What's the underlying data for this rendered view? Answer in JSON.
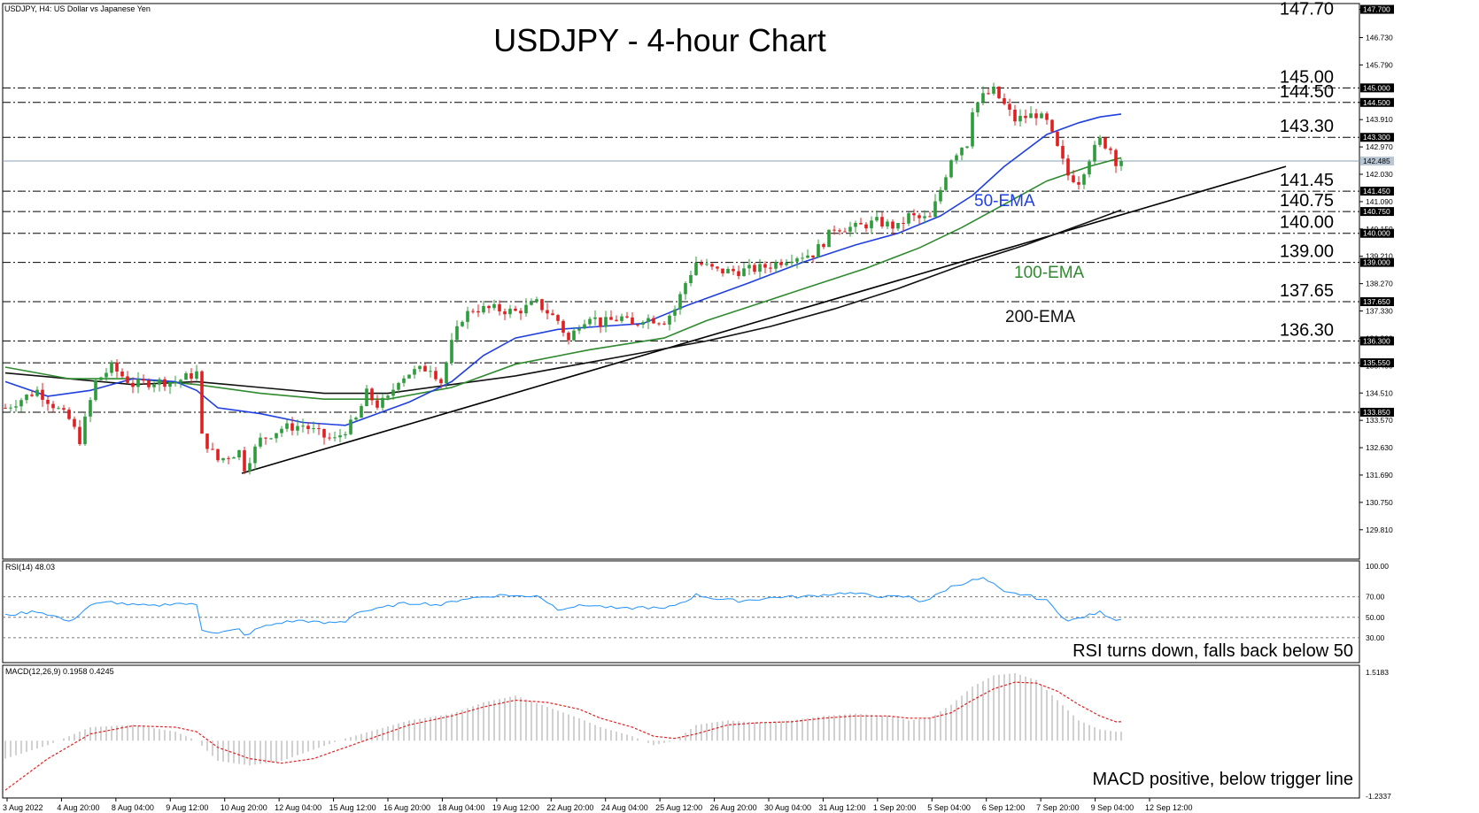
{
  "chart_data": {
    "type": "candlestick",
    "symbol_label": "USDJPY, H4: US Dollar vs Japanese Yen",
    "title": "USDJPY - 4-hour Chart",
    "ylim": [
      128.8,
      147.9
    ],
    "price_axis_ticks": [
      "147.700",
      "146.730",
      "145.790",
      "144.500",
      "143.910",
      "142.970",
      "142.030",
      "141.090",
      "140.150",
      "139.210",
      "138.270",
      "137.330",
      "136.390",
      "135.450",
      "134.510",
      "133.570",
      "132.630",
      "131.690",
      "130.750",
      "129.810"
    ],
    "levels": [
      {
        "value": 145.0,
        "label": "145.00",
        "tag": "145.000"
      },
      {
        "value": 144.5,
        "label": "144.50",
        "tag": "144.500"
      },
      {
        "value": 143.3,
        "label": "143.30",
        "tag": "143.300"
      },
      {
        "value": 141.45,
        "label": "141.45",
        "tag": "141.450"
      },
      {
        "value": 140.75,
        "label": "140.75",
        "tag": "140.750"
      },
      {
        "value": 140.0,
        "label": "140.00",
        "tag": "140.000"
      },
      {
        "value": 139.0,
        "label": "139.00",
        "tag": "139.000"
      },
      {
        "value": 137.65,
        "label": "137.65",
        "tag": "137.650"
      },
      {
        "value": 136.3,
        "label": "136.30",
        "tag": "136.300"
      },
      {
        "value": null,
        "label": "",
        "tag": "135.550"
      },
      {
        "value": null,
        "label": "",
        "tag": "133.850"
      }
    ],
    "top_label": "147.70",
    "top_tag": "147.700",
    "current_price": 142.485,
    "current_tag": "142.485",
    "x_labels": [
      "3 Aug 2022",
      "4 Aug 20:00",
      "8 Aug 04:00",
      "9 Aug 12:00",
      "10 Aug 20:00",
      "12 Aug 04:00",
      "15 Aug 12:00",
      "16 Aug 20:00",
      "18 Aug 04:00",
      "19 Aug 12:00",
      "22 Aug 20:00",
      "24 Aug 04:00",
      "25 Aug 12:00",
      "26 Aug 20:00",
      "30 Aug 04:00",
      "31 Aug 12:00",
      "1 Sep 20:00",
      "5 Sep 04:00",
      "6 Sep 12:00",
      "7 Sep 20:00",
      "9 Sep 04:00",
      "12 Sep 12:00"
    ],
    "close_path": [
      [
        0,
        134.0
      ],
      [
        6,
        134.6
      ],
      [
        12,
        133.6
      ],
      [
        14,
        132.9
      ],
      [
        17,
        134.9
      ],
      [
        20,
        135.4
      ],
      [
        24,
        134.8
      ],
      [
        28,
        134.9
      ],
      [
        32,
        134.9
      ],
      [
        36,
        135.2
      ],
      [
        37,
        133.0
      ],
      [
        40,
        132.2
      ],
      [
        44,
        132.5
      ],
      [
        44.5,
        131.8
      ],
      [
        48,
        132.9
      ],
      [
        52,
        133.3
      ],
      [
        56,
        133.4
      ],
      [
        60,
        133.0
      ],
      [
        62,
        132.9
      ],
      [
        66,
        133.6
      ],
      [
        68,
        134.5
      ],
      [
        70,
        134.1
      ],
      [
        72,
        134.3
      ],
      [
        74,
        135.0
      ],
      [
        76,
        135.2
      ],
      [
        80,
        135.4
      ],
      [
        82,
        134.9
      ],
      [
        84,
        136.2
      ],
      [
        86,
        137.1
      ],
      [
        88,
        137.4
      ],
      [
        92,
        137.4
      ],
      [
        96,
        137.3
      ],
      [
        100,
        137.6
      ],
      [
        104,
        137.0
      ],
      [
        106,
        136.3
      ],
      [
        108,
        136.9
      ],
      [
        110,
        137.2
      ],
      [
        112,
        136.9
      ],
      [
        116,
        137.1
      ],
      [
        118,
        136.8
      ],
      [
        120,
        137.1
      ],
      [
        124,
        137.0
      ],
      [
        126,
        137.4
      ],
      [
        128,
        138.3
      ],
      [
        130,
        139.0
      ],
      [
        134,
        138.7
      ],
      [
        138,
        138.7
      ],
      [
        142,
        138.8
      ],
      [
        144,
        138.9
      ],
      [
        148,
        139.2
      ],
      [
        152,
        139.3
      ],
      [
        154,
        139.7
      ],
      [
        156,
        140.2
      ],
      [
        160,
        140.2
      ],
      [
        164,
        140.4
      ],
      [
        168,
        140.2
      ],
      [
        170,
        140.6
      ],
      [
        172,
        140.5
      ],
      [
        174,
        140.5
      ],
      [
        176,
        141.5
      ],
      [
        178,
        142.6
      ],
      [
        180,
        143.0
      ],
      [
        181,
        143.1
      ],
      [
        182,
        144.3
      ],
      [
        184,
        144.7
      ],
      [
        186,
        144.9
      ],
      [
        188,
        144.4
      ],
      [
        190,
        143.9
      ],
      [
        194,
        144.1
      ],
      [
        196,
        143.8
      ],
      [
        198,
        142.9
      ],
      [
        200,
        142.0
      ],
      [
        202,
        141.8
      ],
      [
        204,
        142.6
      ],
      [
        206,
        143.2
      ],
      [
        208,
        142.9
      ],
      [
        209,
        142.485
      ]
    ],
    "ema50": [
      [
        0,
        134.9
      ],
      [
        8,
        134.4
      ],
      [
        16,
        134.6
      ],
      [
        24,
        135.0
      ],
      [
        32,
        134.9
      ],
      [
        36,
        134.6
      ],
      [
        40,
        134.0
      ],
      [
        48,
        133.8
      ],
      [
        56,
        133.5
      ],
      [
        64,
        133.4
      ],
      [
        70,
        133.8
      ],
      [
        76,
        134.2
      ],
      [
        84,
        134.9
      ],
      [
        90,
        135.8
      ],
      [
        96,
        136.4
      ],
      [
        104,
        136.7
      ],
      [
        112,
        136.8
      ],
      [
        120,
        136.9
      ],
      [
        128,
        137.5
      ],
      [
        140,
        138.3
      ],
      [
        150,
        139.0
      ],
      [
        160,
        139.6
      ],
      [
        168,
        140.0
      ],
      [
        176,
        140.6
      ],
      [
        182,
        141.3
      ],
      [
        188,
        142.3
      ],
      [
        196,
        143.4
      ],
      [
        202,
        143.8
      ],
      [
        206,
        144.0
      ],
      [
        210,
        144.1
      ]
    ],
    "ema100": [
      [
        0,
        135.4
      ],
      [
        12,
        135.0
      ],
      [
        24,
        135.0
      ],
      [
        36,
        134.8
      ],
      [
        48,
        134.5
      ],
      [
        60,
        134.3
      ],
      [
        72,
        134.3
      ],
      [
        84,
        134.7
      ],
      [
        96,
        135.5
      ],
      [
        110,
        136.0
      ],
      [
        124,
        136.4
      ],
      [
        132,
        137.0
      ],
      [
        142,
        137.6
      ],
      [
        152,
        138.2
      ],
      [
        162,
        138.8
      ],
      [
        172,
        139.5
      ],
      [
        180,
        140.2
      ],
      [
        188,
        141.0
      ],
      [
        196,
        141.8
      ],
      [
        204,
        142.3
      ],
      [
        210,
        142.6
      ]
    ],
    "ema200": [
      [
        0,
        135.2
      ],
      [
        24,
        134.8
      ],
      [
        36,
        134.9
      ],
      [
        48,
        134.7
      ],
      [
        60,
        134.5
      ],
      [
        72,
        134.5
      ],
      [
        84,
        134.8
      ],
      [
        96,
        135.1
      ],
      [
        108,
        135.5
      ],
      [
        120,
        135.9
      ],
      [
        132,
        136.3
      ],
      [
        144,
        136.8
      ],
      [
        156,
        137.4
      ],
      [
        168,
        138.1
      ],
      [
        180,
        138.9
      ],
      [
        192,
        139.6
      ],
      [
        204,
        140.4
      ],
      [
        210,
        140.8
      ]
    ],
    "annotations": [
      {
        "text": "50-EMA",
        "color": "#1f3fe0"
      },
      {
        "text": "100-EMA",
        "color": "#2f8a2f"
      },
      {
        "text": "200-EMA",
        "color": "#111111"
      }
    ],
    "rsi": {
      "label": "RSI(14) 48.03",
      "levels": [
        "100.00",
        "70.00",
        "50.00",
        "30.00"
      ],
      "comment": "RSI turns down, falls back below 50",
      "values": [
        [
          0,
          52
        ],
        [
          6,
          56
        ],
        [
          10,
          50
        ],
        [
          12,
          45
        ],
        [
          16,
          62
        ],
        [
          20,
          65
        ],
        [
          24,
          62
        ],
        [
          28,
          61
        ],
        [
          32,
          64
        ],
        [
          36,
          62
        ],
        [
          37,
          38
        ],
        [
          40,
          35
        ],
        [
          44,
          38
        ],
        [
          45,
          32
        ],
        [
          48,
          40
        ],
        [
          52,
          45
        ],
        [
          56,
          47
        ],
        [
          60,
          44
        ],
        [
          64,
          46
        ],
        [
          66,
          55
        ],
        [
          70,
          58
        ],
        [
          74,
          63
        ],
        [
          78,
          64
        ],
        [
          82,
          62
        ],
        [
          86,
          68
        ],
        [
          90,
          70
        ],
        [
          94,
          72
        ],
        [
          98,
          70
        ],
        [
          100,
          72
        ],
        [
          104,
          58
        ],
        [
          106,
          60
        ],
        [
          110,
          62
        ],
        [
          116,
          58
        ],
        [
          120,
          60
        ],
        [
          124,
          58
        ],
        [
          128,
          66
        ],
        [
          130,
          72
        ],
        [
          134,
          68
        ],
        [
          138,
          66
        ],
        [
          142,
          68
        ],
        [
          146,
          70
        ],
        [
          150,
          70
        ],
        [
          154,
          72
        ],
        [
          158,
          74
        ],
        [
          162,
          72
        ],
        [
          166,
          70
        ],
        [
          170,
          70
        ],
        [
          172,
          66
        ],
        [
          174,
          68
        ],
        [
          176,
          74
        ],
        [
          178,
          80
        ],
        [
          182,
          86
        ],
        [
          184,
          88
        ],
        [
          186,
          82
        ],
        [
          188,
          74
        ],
        [
          192,
          72
        ],
        [
          196,
          66
        ],
        [
          198,
          56
        ],
        [
          200,
          46
        ],
        [
          204,
          52
        ],
        [
          206,
          55
        ],
        [
          209,
          48
        ]
      ]
    },
    "macd": {
      "label": "MACD(12,26,9) 0.1958 0.4245",
      "top_value": "1.5183",
      "bottom_value": "-1.2337",
      "comment": "MACD positive, below trigger line",
      "histogram": [
        [
          0,
          -0.4
        ],
        [
          8,
          -0.1
        ],
        [
          16,
          0.3
        ],
        [
          24,
          0.35
        ],
        [
          32,
          0.2
        ],
        [
          36,
          0.0
        ],
        [
          40,
          -0.45
        ],
        [
          46,
          -0.55
        ],
        [
          52,
          -0.45
        ],
        [
          58,
          -0.2
        ],
        [
          64,
          0.05
        ],
        [
          70,
          0.25
        ],
        [
          76,
          0.45
        ],
        [
          84,
          0.6
        ],
        [
          90,
          0.85
        ],
        [
          96,
          1.0
        ],
        [
          102,
          0.75
        ],
        [
          108,
          0.5
        ],
        [
          112,
          0.3
        ],
        [
          118,
          0.1
        ],
        [
          122,
          -0.1
        ],
        [
          126,
          0.0
        ],
        [
          130,
          0.35
        ],
        [
          136,
          0.45
        ],
        [
          142,
          0.4
        ],
        [
          148,
          0.45
        ],
        [
          154,
          0.55
        ],
        [
          160,
          0.6
        ],
        [
          166,
          0.55
        ],
        [
          170,
          0.45
        ],
        [
          174,
          0.5
        ],
        [
          178,
          0.8
        ],
        [
          182,
          1.2
        ],
        [
          186,
          1.45
        ],
        [
          190,
          1.5
        ],
        [
          194,
          1.35
        ],
        [
          198,
          0.9
        ],
        [
          202,
          0.45
        ],
        [
          206,
          0.25
        ],
        [
          209,
          0.2
        ]
      ],
      "signal": [
        [
          0,
          -1.1
        ],
        [
          8,
          -0.4
        ],
        [
          16,
          0.15
        ],
        [
          24,
          0.33
        ],
        [
          32,
          0.3
        ],
        [
          36,
          0.2
        ],
        [
          40,
          -0.15
        ],
        [
          46,
          -0.4
        ],
        [
          52,
          -0.5
        ],
        [
          58,
          -0.4
        ],
        [
          64,
          -0.15
        ],
        [
          70,
          0.1
        ],
        [
          76,
          0.35
        ],
        [
          84,
          0.55
        ],
        [
          90,
          0.75
        ],
        [
          96,
          0.9
        ],
        [
          102,
          0.85
        ],
        [
          108,
          0.7
        ],
        [
          112,
          0.5
        ],
        [
          118,
          0.3
        ],
        [
          122,
          0.1
        ],
        [
          126,
          0.05
        ],
        [
          130,
          0.15
        ],
        [
          136,
          0.35
        ],
        [
          142,
          0.4
        ],
        [
          148,
          0.42
        ],
        [
          154,
          0.5
        ],
        [
          160,
          0.55
        ],
        [
          166,
          0.55
        ],
        [
          170,
          0.5
        ],
        [
          174,
          0.5
        ],
        [
          178,
          0.62
        ],
        [
          182,
          0.9
        ],
        [
          186,
          1.15
        ],
        [
          190,
          1.3
        ],
        [
          194,
          1.28
        ],
        [
          198,
          1.1
        ],
        [
          202,
          0.8
        ],
        [
          206,
          0.55
        ],
        [
          209,
          0.42
        ]
      ]
    }
  }
}
